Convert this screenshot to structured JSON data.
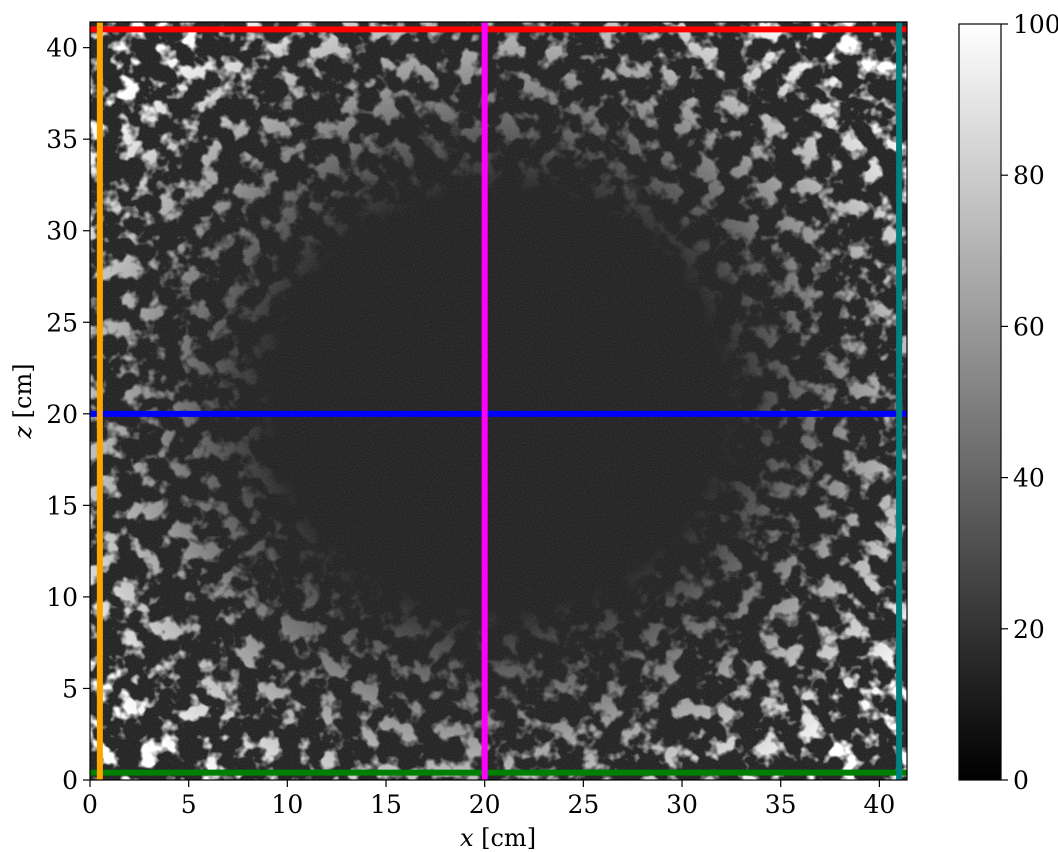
{
  "chart_data": {
    "type": "heatmap",
    "colormap": "gray",
    "description_visible": "grayscale field with bright curly filaments concentrated near the walls, dark centre",
    "xlabel": {
      "var": "x",
      "unit": "[cm]"
    },
    "ylabel": {
      "var": "z",
      "unit": "[cm]"
    },
    "xlim": [
      0,
      41.4
    ],
    "ylim": [
      0,
      41.4
    ],
    "x_ticks": [
      0,
      5,
      10,
      15,
      20,
      25,
      30,
      35,
      40
    ],
    "y_ticks": [
      0,
      5,
      10,
      15,
      20,
      25,
      30,
      35,
      40
    ],
    "colorbar": {
      "range": [
        0,
        100
      ],
      "ticks": [
        0,
        20,
        40,
        60,
        80,
        100
      ]
    },
    "lines": [
      {
        "orientation": "horizontal",
        "z": 41.0,
        "color": "#ff0000"
      },
      {
        "orientation": "horizontal",
        "z": 20.0,
        "color": "#0000ff"
      },
      {
        "orientation": "horizontal",
        "z": 0.4,
        "color": "#008000"
      },
      {
        "orientation": "vertical",
        "x": 0.5,
        "color": "#ffa500"
      },
      {
        "orientation": "vertical",
        "x": 20.0,
        "color": "#ff00ff"
      },
      {
        "orientation": "vertical",
        "x": 41.0,
        "color": "#008080"
      }
    ]
  }
}
